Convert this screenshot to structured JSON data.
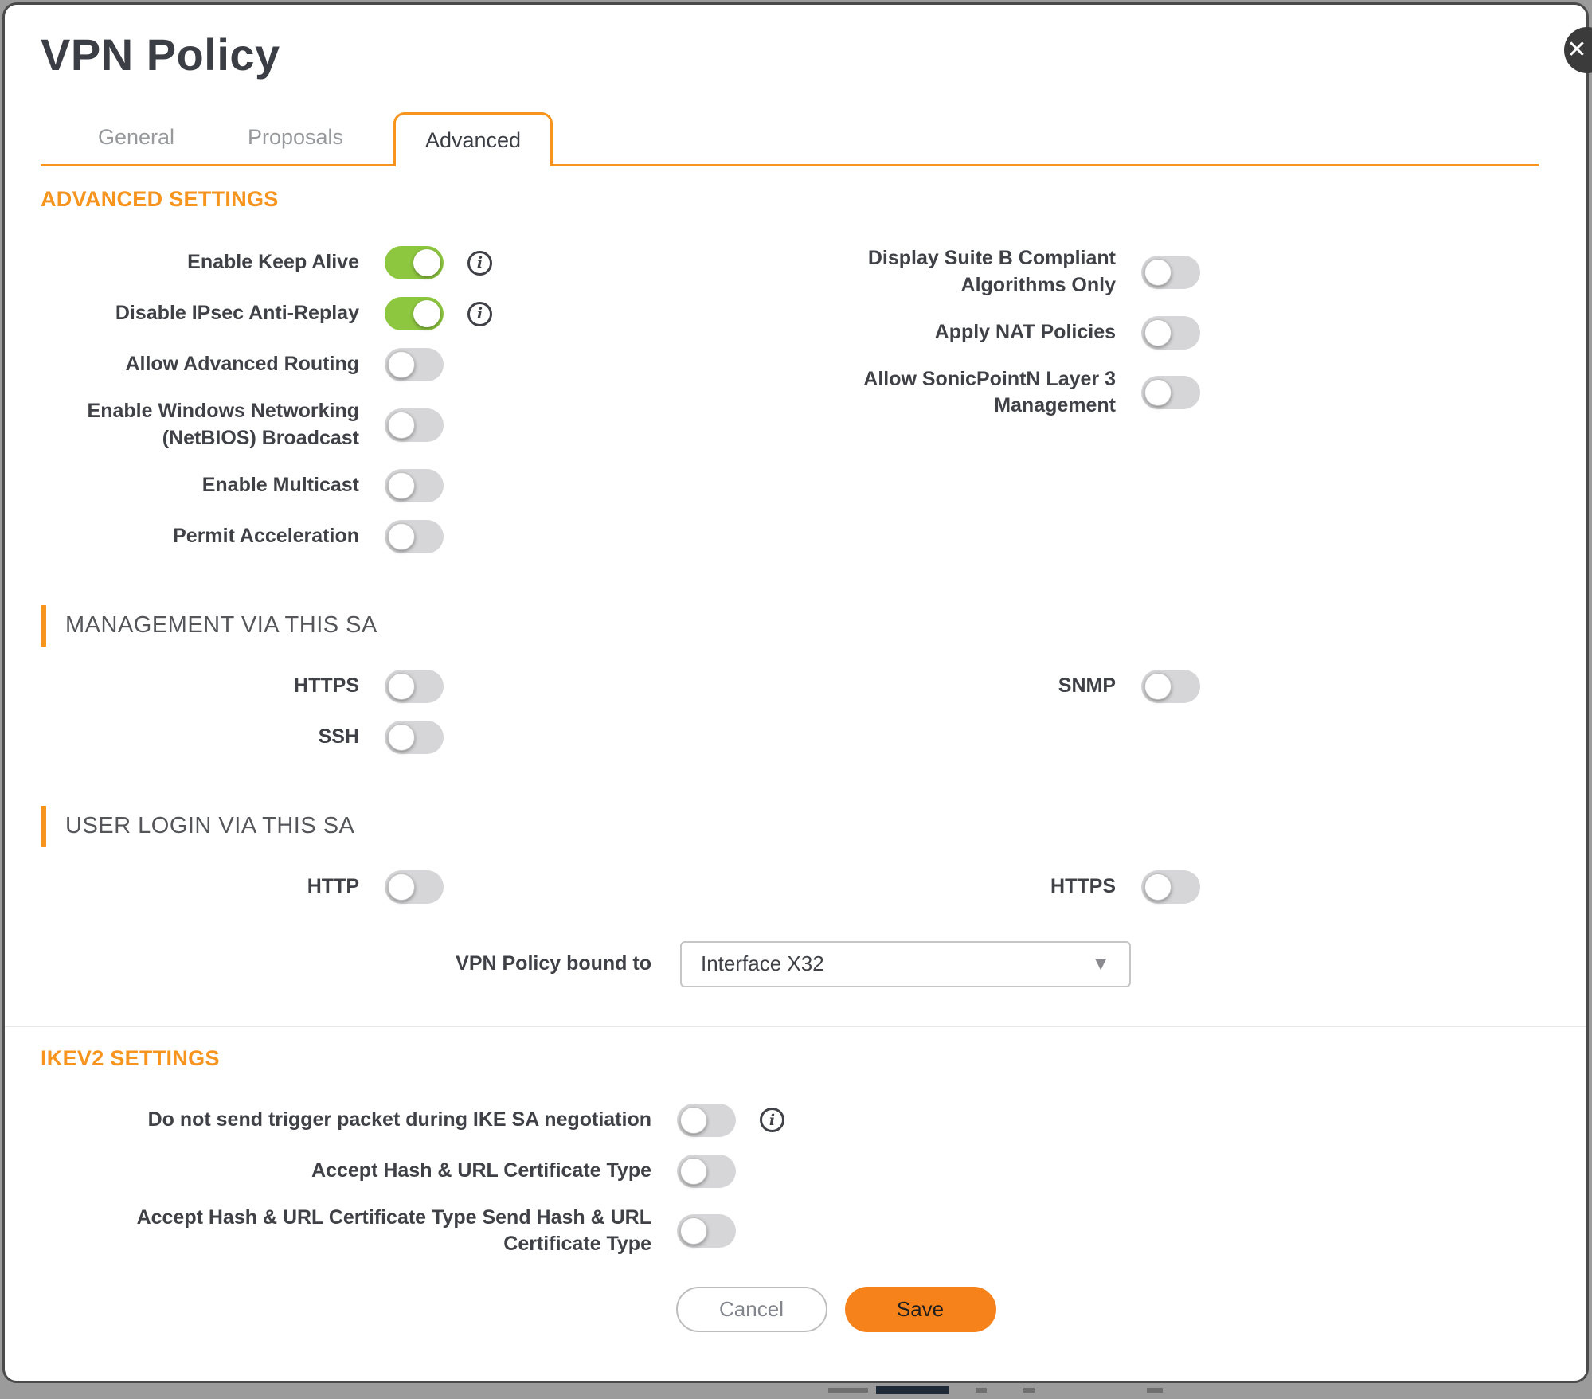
{
  "dialog": {
    "title": "VPN Policy"
  },
  "icons": {
    "close": "✕",
    "info": "i",
    "dropdown_caret": "▼"
  },
  "tabs": [
    {
      "label": "General",
      "active": false
    },
    {
      "label": "Proposals",
      "active": false
    },
    {
      "label": "Advanced",
      "active": true
    }
  ],
  "sections": {
    "advanced": {
      "heading": "ADVANCED SETTINGS",
      "left_toggles": [
        {
          "label": "Enable Keep Alive",
          "on": true,
          "info": true
        },
        {
          "label": "Disable IPsec Anti-Replay",
          "on": true,
          "info": true
        },
        {
          "label": "Allow Advanced Routing",
          "on": false,
          "info": false
        },
        {
          "label": "Enable Windows Networking (NetBIOS) Broadcast",
          "on": false,
          "info": false
        },
        {
          "label": "Enable Multicast",
          "on": false,
          "info": false
        },
        {
          "label": "Permit Acceleration",
          "on": false,
          "info": false
        }
      ],
      "right_toggles": [
        {
          "label": "Display Suite B Compliant Algorithms Only",
          "on": false,
          "info": false
        },
        {
          "label": "Apply NAT Policies",
          "on": false,
          "info": false
        },
        {
          "label": "Allow SonicPointN Layer 3 Management",
          "on": false,
          "info": false
        }
      ]
    },
    "management": {
      "heading": "MANAGEMENT VIA THIS SA",
      "left_toggles": [
        {
          "label": "HTTPS",
          "on": false,
          "info": false
        },
        {
          "label": "SSH",
          "on": false,
          "info": false
        }
      ],
      "right_toggles": [
        {
          "label": "SNMP",
          "on": false,
          "info": false
        }
      ]
    },
    "user_login": {
      "heading": "USER LOGIN VIA THIS SA",
      "left_toggles": [
        {
          "label": "HTTP",
          "on": false,
          "info": false
        }
      ],
      "right_toggles": [
        {
          "label": "HTTPS",
          "on": false,
          "info": false
        }
      ],
      "bound_to": {
        "label": "VPN Policy bound to",
        "value": "Interface X32"
      }
    },
    "ikev2": {
      "heading": "IKEV2 SETTINGS",
      "toggles": [
        {
          "label": "Do not send trigger packet during IKE SA negotiation",
          "on": false,
          "info": true
        },
        {
          "label": "Accept Hash & URL Certificate Type",
          "on": false,
          "info": false
        },
        {
          "label": "Accept Hash & URL Certificate Type Send Hash & URL Certificate Type",
          "on": false,
          "info": false
        }
      ]
    }
  },
  "footer": {
    "cancel_label": "Cancel",
    "save_label": "Save"
  },
  "colors": {
    "accent_orange": "#F7941D",
    "save_orange": "#F6821C",
    "toggle_on_green": "#8DC63F",
    "toggle_off_gray": "#D6D6D8",
    "label_dark": "#3F4147",
    "section_gray": "#55565A",
    "tab_inactive_gray": "#97999C",
    "dialog_border": "#4A4A4A",
    "backdrop_gray": "#9B9B9B",
    "backdrop_navy": "#1E2A38"
  }
}
